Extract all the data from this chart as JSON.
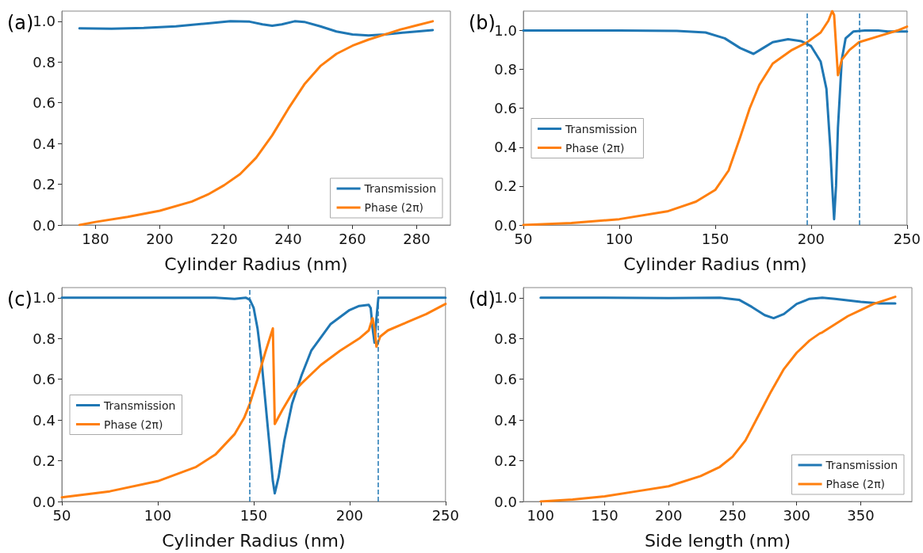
{
  "chart_data": [
    {
      "type": "line",
      "title": "(a)",
      "xlabel": "Cylinder Radius (nm)",
      "xlim": [
        169.5,
        290.5
      ],
      "xticks": [
        180,
        200,
        220,
        240,
        260,
        280
      ],
      "ylim": [
        0,
        1.05
      ],
      "yticks": [
        {
          "value": 0,
          "label": "0.0"
        },
        {
          "value": 0.2,
          "label": "0.2"
        },
        {
          "value": 0.4,
          "label": "0.4"
        },
        {
          "value": 0.6,
          "label": "0.6"
        },
        {
          "value": 0.8,
          "label": "0.8"
        },
        {
          "value": 1,
          "label": "1.0"
        }
      ],
      "legend": "bottom right",
      "grid": false,
      "marker": "none",
      "line_style": "solid",
      "series": [
        {
          "name": "Transmission",
          "color": "#1f77b4",
          "x": [
            175,
            185,
            195,
            205,
            215,
            222,
            228,
            232,
            235,
            238,
            242,
            245,
            250,
            255,
            260,
            265,
            270,
            275,
            280,
            285
          ],
          "values": [
            0.965,
            0.963,
            0.967,
            0.975,
            0.99,
            1.0,
            0.998,
            0.985,
            0.978,
            0.985,
            1.0,
            0.997,
            0.975,
            0.95,
            0.935,
            0.93,
            0.935,
            0.943,
            0.95,
            0.957
          ]
        },
        {
          "name": "Phase (2π)",
          "color": "#ff7f0e",
          "x": [
            175,
            180,
            190,
            200,
            210,
            215,
            220,
            225,
            230,
            235,
            240,
            245,
            250,
            255,
            260,
            265,
            270,
            275,
            280,
            285
          ],
          "values": [
            0,
            0.015,
            0.04,
            0.07,
            0.115,
            0.15,
            0.195,
            0.25,
            0.33,
            0.44,
            0.57,
            0.69,
            0.78,
            0.84,
            0.88,
            0.91,
            0.935,
            0.96,
            0.98,
            1.0
          ]
        }
      ]
    },
    {
      "type": "line",
      "title": "(b)",
      "xlabel": "Cylinder Radius (nm)",
      "xlim": [
        50,
        250
      ],
      "xticks": [
        50,
        100,
        150,
        200,
        250
      ],
      "ylim": [
        0,
        1.1
      ],
      "yticks": [
        {
          "value": 0,
          "label": "0.0"
        },
        {
          "value": 0.2,
          "label": "0.2"
        },
        {
          "value": 0.4,
          "label": "0.4"
        },
        {
          "value": 0.6,
          "label": "0.6"
        },
        {
          "value": 0.8,
          "label": "0.8"
        },
        {
          "value": 1,
          "label": "1.0"
        }
      ],
      "legend": "left",
      "grid": false,
      "marker": "none",
      "line_style": "solid",
      "ref_lines": [
        {
          "axis": "x",
          "value": 198,
          "color": "#1f77b4",
          "line_style": "dashed"
        },
        {
          "axis": "x",
          "value": 225,
          "color": "#1f77b4",
          "line_style": "dashed"
        }
      ],
      "series": [
        {
          "name": "Transmission",
          "color": "#1f77b4",
          "x": [
            50,
            100,
            130,
            145,
            155,
            163,
            170,
            175,
            180,
            188,
            195,
            200,
            205,
            208,
            210,
            211,
            212,
            213,
            214,
            216,
            218,
            222,
            228,
            235,
            240,
            250
          ],
          "values": [
            1.0,
            1.0,
            0.998,
            0.99,
            0.96,
            0.91,
            0.88,
            0.91,
            0.94,
            0.955,
            0.945,
            0.92,
            0.84,
            0.7,
            0.4,
            0.2,
            0.03,
            0.2,
            0.5,
            0.85,
            0.96,
            0.995,
            1.0,
            1.0,
            0.995,
            0.995
          ]
        },
        {
          "name": "Phase (2π)",
          "color": "#ff7f0e",
          "x": [
            50,
            75,
            100,
            125,
            140,
            150,
            157,
            163,
            168,
            173,
            180,
            190,
            198,
            205,
            209,
            211,
            212,
            214,
            216,
            220,
            225,
            235,
            245,
            250
          ],
          "values": [
            0,
            0.01,
            0.03,
            0.07,
            0.12,
            0.18,
            0.28,
            0.45,
            0.6,
            0.72,
            0.83,
            0.9,
            0.94,
            0.99,
            1.05,
            1.1,
            1.08,
            0.77,
            0.85,
            0.9,
            0.94,
            0.97,
            1.0,
            1.02
          ]
        }
      ]
    },
    {
      "type": "line",
      "title": "(c)",
      "xlabel": "Cylinder Radius (nm)",
      "xlim": [
        50,
        250
      ],
      "xticks": [
        50,
        100,
        150,
        200,
        250
      ],
      "ylim": [
        0,
        1.05
      ],
      "yticks": [
        {
          "value": 0,
          "label": "0.0"
        },
        {
          "value": 0.2,
          "label": "0.2"
        },
        {
          "value": 0.4,
          "label": "0.4"
        },
        {
          "value": 0.6,
          "label": "0.6"
        },
        {
          "value": 0.8,
          "label": "0.8"
        },
        {
          "value": 1,
          "label": "1.0"
        }
      ],
      "legend": "left",
      "grid": false,
      "marker": "none",
      "line_style": "solid",
      "ref_lines": [
        {
          "axis": "x",
          "value": 148,
          "color": "#1f77b4",
          "line_style": "dashed"
        },
        {
          "axis": "x",
          "value": 215,
          "color": "#1f77b4",
          "line_style": "dashed"
        }
      ],
      "series": [
        {
          "name": "Transmission",
          "color": "#1f77b4",
          "x": [
            50,
            100,
            130,
            140,
            146,
            148,
            150,
            152,
            154,
            156,
            158,
            160,
            161,
            163,
            166,
            170,
            175,
            180,
            190,
            200,
            205,
            210,
            211,
            212,
            213,
            214,
            215,
            220,
            250
          ],
          "values": [
            1.0,
            1.0,
            1.0,
            0.995,
            1.0,
            0.99,
            0.95,
            0.85,
            0.7,
            0.5,
            0.3,
            0.1,
            0.04,
            0.12,
            0.3,
            0.48,
            0.62,
            0.74,
            0.87,
            0.94,
            0.96,
            0.965,
            0.95,
            0.85,
            0.78,
            0.9,
            1.0,
            1.0,
            1.0
          ]
        },
        {
          "name": "Phase (2π)",
          "color": "#ff7f0e",
          "x": [
            50,
            75,
            100,
            120,
            130,
            140,
            145,
            148,
            152,
            156,
            160,
            161,
            165,
            170,
            175,
            185,
            195,
            205,
            210,
            212,
            213,
            214,
            216,
            220,
            230,
            240,
            250
          ],
          "values": [
            0.02,
            0.05,
            0.1,
            0.17,
            0.23,
            0.33,
            0.41,
            0.48,
            0.6,
            0.73,
            0.85,
            0.38,
            0.45,
            0.53,
            0.58,
            0.67,
            0.74,
            0.8,
            0.84,
            0.9,
            0.85,
            0.76,
            0.81,
            0.84,
            0.88,
            0.92,
            0.97
          ]
        }
      ]
    },
    {
      "type": "line",
      "title": "(d)",
      "xlabel": "Side length (nm)",
      "xlim": [
        86.5,
        390
      ],
      "xticks": [
        100,
        150,
        200,
        250,
        300,
        350
      ],
      "ylim": [
        0,
        1.05
      ],
      "yticks": [
        {
          "value": 0,
          "label": "0.0"
        },
        {
          "value": 0.2,
          "label": "0.2"
        },
        {
          "value": 0.4,
          "label": "0.4"
        },
        {
          "value": 0.6,
          "label": "0.6"
        },
        {
          "value": 0.8,
          "label": "0.8"
        },
        {
          "value": 1,
          "label": "1.0"
        }
      ],
      "legend": "bottom right",
      "grid": false,
      "marker": "none",
      "line_style": "solid",
      "series": [
        {
          "name": "Transmission",
          "color": "#1f77b4",
          "x": [
            100,
            150,
            200,
            240,
            255,
            265,
            275,
            282,
            290,
            300,
            310,
            320,
            330,
            350,
            365,
            377
          ],
          "values": [
            1.0,
            1.0,
            0.998,
            1.0,
            0.99,
            0.955,
            0.915,
            0.9,
            0.92,
            0.97,
            0.995,
            1.0,
            0.995,
            0.98,
            0.972,
            0.972
          ]
        },
        {
          "name": "Phase (2π)",
          "color": "#ff7f0e",
          "x": [
            100,
            125,
            150,
            175,
            200,
            225,
            240,
            250,
            260,
            270,
            280,
            290,
            300,
            310,
            318,
            320,
            330,
            340,
            350,
            360,
            370,
            377
          ],
          "values": [
            0,
            0.01,
            0.025,
            0.05,
            0.075,
            0.125,
            0.17,
            0.22,
            0.3,
            0.42,
            0.54,
            0.65,
            0.73,
            0.79,
            0.825,
            0.83,
            0.87,
            0.91,
            0.94,
            0.97,
            0.99,
            1.005
          ]
        }
      ]
    }
  ]
}
